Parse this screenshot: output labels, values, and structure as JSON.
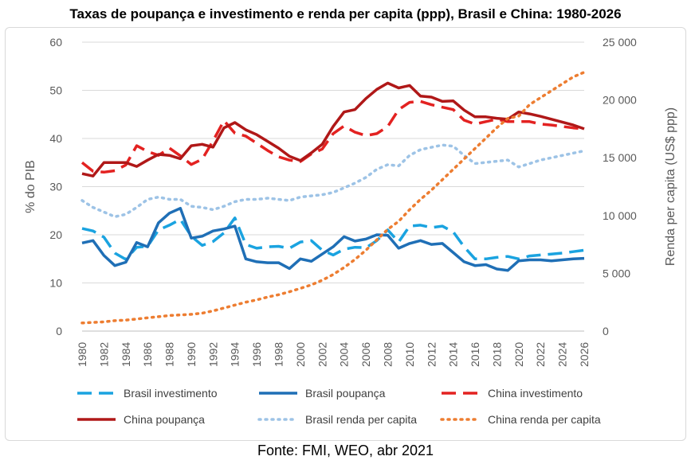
{
  "chart_data": {
    "type": "line",
    "title": "Taxas de poupança e investimento e renda per capita (ppp), Brasil e China: 1980-2026",
    "source": "Fonte: FMI, WEO, abr 2021",
    "ylabel": "% do PIB",
    "y2label": "Renda per capita (US$ ppp)",
    "ylim": [
      0,
      60
    ],
    "y2lim": [
      0,
      25000
    ],
    "yticks": [
      "0",
      "10",
      "20",
      "30",
      "40",
      "50",
      "60"
    ],
    "y2ticks": [
      "0",
      "5 000",
      "10 000",
      "15 000",
      "20 000",
      "25 000"
    ],
    "xticks": [
      "1980",
      "1982",
      "1984",
      "1986",
      "1988",
      "1990",
      "1992",
      "1994",
      "1996",
      "1998",
      "2000",
      "2002",
      "2004",
      "2006",
      "2008",
      "2010",
      "2012",
      "2014",
      "2016",
      "2018",
      "2020",
      "2022",
      "2024",
      "2026"
    ],
    "x": [
      1980,
      1981,
      1982,
      1983,
      1984,
      1985,
      1986,
      1987,
      1988,
      1989,
      1990,
      1991,
      1992,
      1993,
      1994,
      1995,
      1996,
      1997,
      1998,
      1999,
      2000,
      2001,
      2002,
      2003,
      2004,
      2005,
      2006,
      2007,
      2008,
      2009,
      2010,
      2011,
      2012,
      2013,
      2014,
      2015,
      2016,
      2017,
      2018,
      2019,
      2020,
      2021,
      2022,
      2023,
      2024,
      2025,
      2026
    ],
    "grid": true,
    "legend": "bottom",
    "series": [
      {
        "name": "Brasil investimento",
        "axis": "left",
        "color": "#1aa3e0",
        "style": "dash",
        "values": [
          21.3,
          20.8,
          19.5,
          16.2,
          14.9,
          17.4,
          17.6,
          21.0,
          22.0,
          23.2,
          19.7,
          17.8,
          18.6,
          20.4,
          23.5,
          18.0,
          17.2,
          17.5,
          17.6,
          17.2,
          18.5,
          18.8,
          16.8,
          15.8,
          17.0,
          17.4,
          17.3,
          18.8,
          21.0,
          18.5,
          21.8,
          22.0,
          21.5,
          21.8,
          20.6,
          17.5,
          15.0,
          15.0,
          15.3,
          15.5,
          15.0,
          15.6,
          15.8,
          16.0,
          16.2,
          16.5,
          16.8
        ]
      },
      {
        "name": "Brasil poupança",
        "axis": "left",
        "color": "#1f6fb6",
        "style": "solid",
        "values": [
          18.3,
          18.8,
          15.7,
          13.6,
          14.3,
          18.4,
          17.5,
          22.5,
          24.5,
          25.5,
          19.3,
          19.7,
          20.8,
          21.2,
          21.8,
          15.0,
          14.4,
          14.2,
          14.2,
          13.0,
          15.0,
          14.5,
          16.0,
          17.5,
          19.6,
          18.7,
          19.1,
          20.0,
          19.9,
          17.2,
          18.2,
          18.8,
          18.0,
          18.2,
          16.3,
          14.4,
          13.6,
          13.8,
          12.9,
          12.6,
          14.6,
          14.8,
          14.8,
          14.6,
          14.8,
          15.0,
          15.1
        ]
      },
      {
        "name": "China investimento",
        "axis": "left",
        "color": "#e32221",
        "style": "dash",
        "values": [
          35.0,
          33.2,
          33.0,
          33.3,
          34.5,
          38.5,
          37.3,
          36.5,
          38.0,
          36.4,
          34.6,
          35.7,
          39.5,
          43.7,
          41.1,
          40.5,
          39.0,
          37.5,
          36.2,
          35.5,
          35.2,
          36.8,
          37.8,
          41.0,
          42.6,
          41.3,
          40.6,
          41.0,
          42.5,
          46.0,
          47.5,
          47.7,
          47.0,
          46.5,
          46.0,
          43.8,
          43.0,
          43.5,
          44.0,
          43.5,
          43.5,
          43.5,
          43.0,
          42.8,
          42.5,
          42.2,
          42.0
        ]
      },
      {
        "name": "China poupança",
        "axis": "left",
        "color": "#b01818",
        "style": "solid",
        "values": [
          32.7,
          32.2,
          35.0,
          35.0,
          35.0,
          34.2,
          35.5,
          36.7,
          36.5,
          35.8,
          38.5,
          38.8,
          38.2,
          42.2,
          43.3,
          41.8,
          40.8,
          39.4,
          38.0,
          36.3,
          35.4,
          37.0,
          38.8,
          42.5,
          45.5,
          46.0,
          48.3,
          50.2,
          51.5,
          50.5,
          51.0,
          48.8,
          48.6,
          47.7,
          47.8,
          45.9,
          44.5,
          44.5,
          44.2,
          44.0,
          45.5,
          45.1,
          44.6,
          44.0,
          43.4,
          42.8,
          42.0
        ]
      },
      {
        "name": "Brasil renda per capita",
        "axis": "right",
        "color": "#9dc3e6",
        "style": "dot",
        "values": [
          11300,
          10700,
          10300,
          9900,
          10100,
          10700,
          11400,
          11600,
          11400,
          11400,
          10800,
          10700,
          10500,
          10800,
          11200,
          11400,
          11400,
          11500,
          11400,
          11300,
          11600,
          11700,
          11800,
          12000,
          12400,
          12800,
          13300,
          14000,
          14400,
          14300,
          15200,
          15700,
          15900,
          16100,
          16000,
          15200,
          14500,
          14600,
          14700,
          14800,
          14200,
          14500,
          14800,
          15000,
          15200,
          15400,
          15600
        ]
      },
      {
        "name": "China renda per capita",
        "axis": "right",
        "color": "#ed7d31",
        "style": "dot",
        "values": [
          700,
          750,
          800,
          900,
          950,
          1050,
          1150,
          1250,
          1350,
          1400,
          1450,
          1550,
          1750,
          2000,
          2250,
          2500,
          2700,
          2950,
          3150,
          3400,
          3700,
          4000,
          4400,
          4900,
          5500,
          6200,
          7000,
          7900,
          8800,
          9500,
          10500,
          11400,
          12200,
          13100,
          14000,
          14900,
          15800,
          16700,
          17600,
          18400,
          18600,
          19600,
          20200,
          20800,
          21400,
          22000,
          22400
        ]
      }
    ]
  }
}
